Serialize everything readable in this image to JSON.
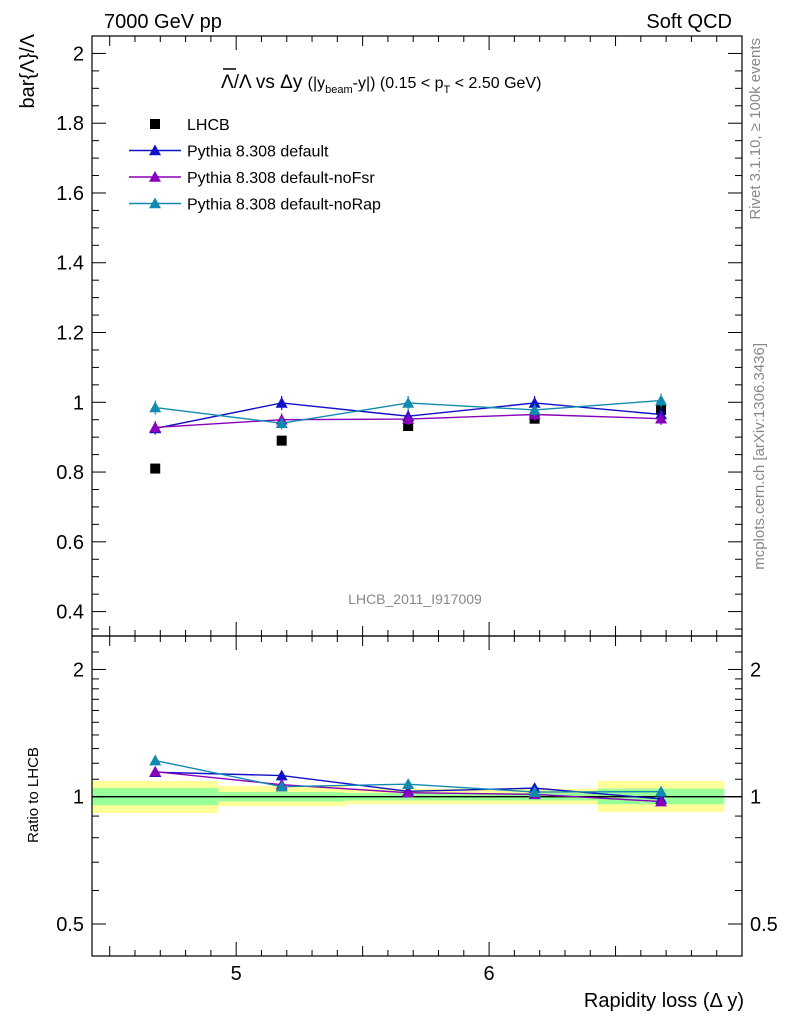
{
  "header": {
    "left": "7000 GeV pp",
    "right": "Soft QCD"
  },
  "side_labels": {
    "rivet": "Rivet 3.1.10, ≥ 100k events",
    "mcplots": "mcplots.cern.ch [arXiv:1306.3436]"
  },
  "watermark": "LHCB_2011_I917009",
  "chart_data": [
    {
      "type": "scatter",
      "title_parts": {
        "lambda_bar": "Λ",
        "ratio_rest": "/Λ vs Δy ",
        "paren_open": "(|y",
        "sub_beam": "beam",
        "paren_mid": "-y|) (0.15 < p",
        "sub_T": "T",
        "paren_close": " < 2.50 GeV)"
      },
      "xlabel": "Rapidity loss (Δ y)",
      "ylabel": "bar{Λ}/Λ",
      "xlim": [
        4.43,
        7.0
      ],
      "ylim": [
        0.33,
        2.05
      ],
      "yticks": [
        0.4,
        0.6,
        0.8,
        1,
        1.2,
        1.4,
        1.6,
        1.8,
        2
      ],
      "ytick_labels": [
        "0.4",
        "0.6",
        "0.8",
        "1",
        "1.2",
        "1.4",
        "1.6",
        "1.8",
        "2"
      ],
      "x": [
        4.68,
        5.18,
        5.68,
        6.18,
        6.68
      ],
      "series": [
        {
          "name": "LHCB",
          "marker": "square",
          "color": "#000000",
          "values": [
            0.81,
            0.89,
            0.932,
            0.953,
            0.978
          ]
        },
        {
          "name": "Pythia 8.308 default",
          "marker": "triangle",
          "color": "#1010c8",
          "values": [
            0.925,
            0.998,
            0.96,
            0.998,
            0.965
          ],
          "errors": [
            0.018,
            0.02,
            0.018,
            0.02,
            0.018
          ]
        },
        {
          "name": "Pythia 8.308 default-noFsr",
          "marker": "triangle",
          "color": "#8800bb",
          "values": [
            0.928,
            0.95,
            0.952,
            0.965,
            0.953
          ],
          "errors": [
            0.018,
            0.018,
            0.018,
            0.018,
            0.018
          ]
        },
        {
          "name": "Pythia 8.308 default-noRap",
          "marker": "triangle",
          "color": "#118ab0",
          "values": [
            0.985,
            0.94,
            0.998,
            0.978,
            1.005
          ],
          "errors": [
            0.02,
            0.018,
            0.02,
            0.018,
            0.02
          ]
        }
      ],
      "legend": "top-left"
    },
    {
      "type": "scatter",
      "ylabel": "Ratio to LHCB",
      "scale": "log",
      "ylim": [
        0.42,
        2.4
      ],
      "yticks": [
        0.5,
        1,
        2
      ],
      "ytick_labels": [
        "0.5",
        "1",
        "2"
      ],
      "xticks": [
        5,
        6
      ],
      "xtick_labels": [
        "5",
        "6"
      ],
      "bins": [
        [
          4.43,
          4.93
        ],
        [
          4.93,
          5.43
        ],
        [
          5.43,
          5.93
        ],
        [
          5.93,
          6.43
        ],
        [
          6.43,
          6.93
        ]
      ],
      "band_stat": [
        [
          0.955,
          1.048
        ],
        [
          0.975,
          1.025
        ],
        [
          0.98,
          1.02
        ],
        [
          0.98,
          1.02
        ],
        [
          0.96,
          1.045
        ]
      ],
      "band_total": [
        [
          0.915,
          1.09
        ],
        [
          0.95,
          1.06
        ],
        [
          0.96,
          1.045
        ],
        [
          0.96,
          1.045
        ],
        [
          0.92,
          1.09
        ]
      ],
      "series": [
        {
          "name": "Pythia 8.308 default",
          "values": [
            1.143,
            1.122,
            1.03,
            1.048,
            0.988
          ]
        },
        {
          "name": "Pythia 8.308 default-noFsr",
          "values": [
            1.146,
            1.068,
            1.022,
            1.013,
            0.974
          ]
        },
        {
          "name": "Pythia 8.308 default-noRap",
          "values": [
            1.218,
            1.056,
            1.071,
            1.026,
            1.028
          ]
        }
      ]
    }
  ],
  "colors": {
    "band_total": "#ffff99",
    "band_stat": "#99ff99",
    "axis": "#000000"
  }
}
